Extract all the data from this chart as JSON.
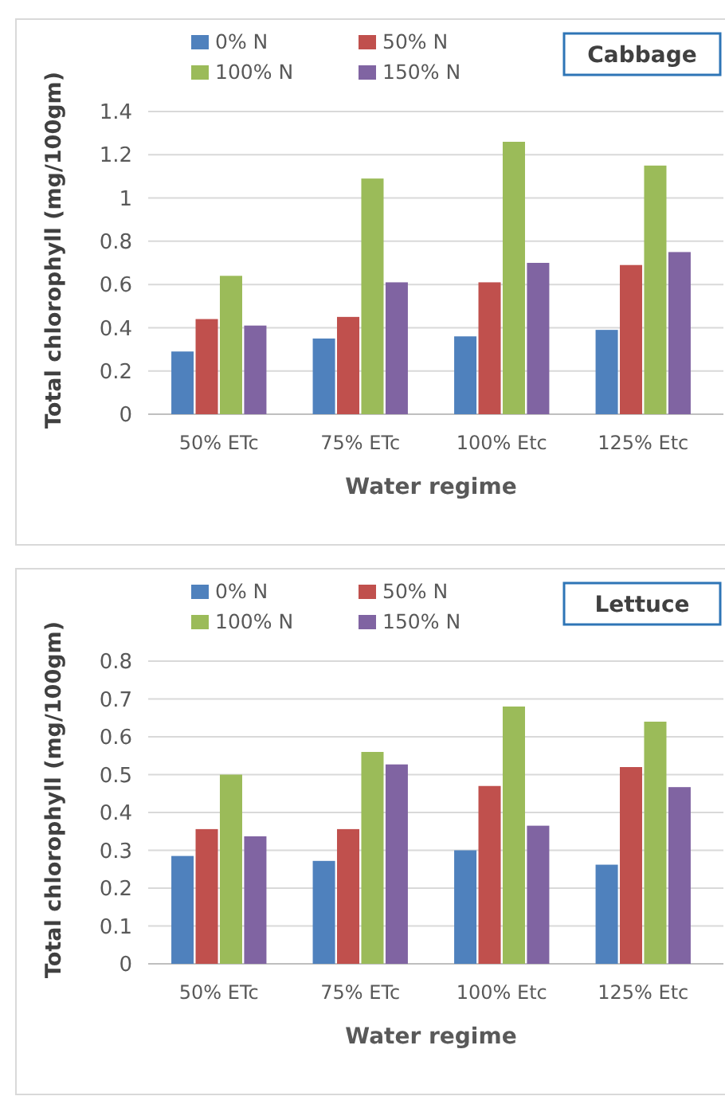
{
  "chart_data": [
    {
      "type": "bar",
      "title": "Cabbage",
      "xlabel": "Water regime",
      "ylabel": "Total chlorophyll  (mg/100gm)",
      "categories": [
        "50% ETc",
        "75% ETc",
        "100% Etc",
        "125% Etc"
      ],
      "series": [
        {
          "name": "0% N",
          "color": "#4f81bd",
          "values": [
            0.29,
            0.35,
            0.36,
            0.39
          ]
        },
        {
          "name": "50% N",
          "color": "#c0504d",
          "values": [
            0.44,
            0.45,
            0.61,
            0.69
          ]
        },
        {
          "name": "100% N",
          "color": "#9bbb59",
          "values": [
            0.64,
            1.09,
            1.26,
            1.15
          ]
        },
        {
          "name": "150% N",
          "color": "#8064a2",
          "values": [
            0.41,
            0.61,
            0.7,
            0.75
          ]
        }
      ],
      "ylim": [
        0,
        1.4
      ],
      "yticks": [
        0,
        0.2,
        0.4,
        0.6,
        0.8,
        1,
        1.2,
        1.4
      ],
      "grid": "y",
      "legend": "top"
    },
    {
      "type": "bar",
      "title": "Lettuce",
      "xlabel": "Water regime",
      "ylabel": "Total chlorophyll  (mg/100gm)",
      "categories": [
        "50% ETc",
        "75% ETc",
        "100% Etc",
        "125% Etc"
      ],
      "series": [
        {
          "name": "0% N",
          "color": "#4f81bd",
          "values": [
            0.285,
            0.272,
            0.3,
            0.262
          ]
        },
        {
          "name": "50% N",
          "color": "#c0504d",
          "values": [
            0.356,
            0.356,
            0.47,
            0.52
          ]
        },
        {
          "name": "100% N",
          "color": "#9bbb59",
          "values": [
            0.5,
            0.56,
            0.68,
            0.64
          ]
        },
        {
          "name": "150% N",
          "color": "#8064a2",
          "values": [
            0.337,
            0.527,
            0.365,
            0.467
          ]
        }
      ],
      "ylim": [
        0,
        0.8
      ],
      "yticks": [
        0,
        0.1,
        0.2,
        0.3,
        0.4,
        0.5,
        0.6,
        0.7,
        0.8
      ],
      "grid": "y",
      "legend": "top"
    }
  ]
}
